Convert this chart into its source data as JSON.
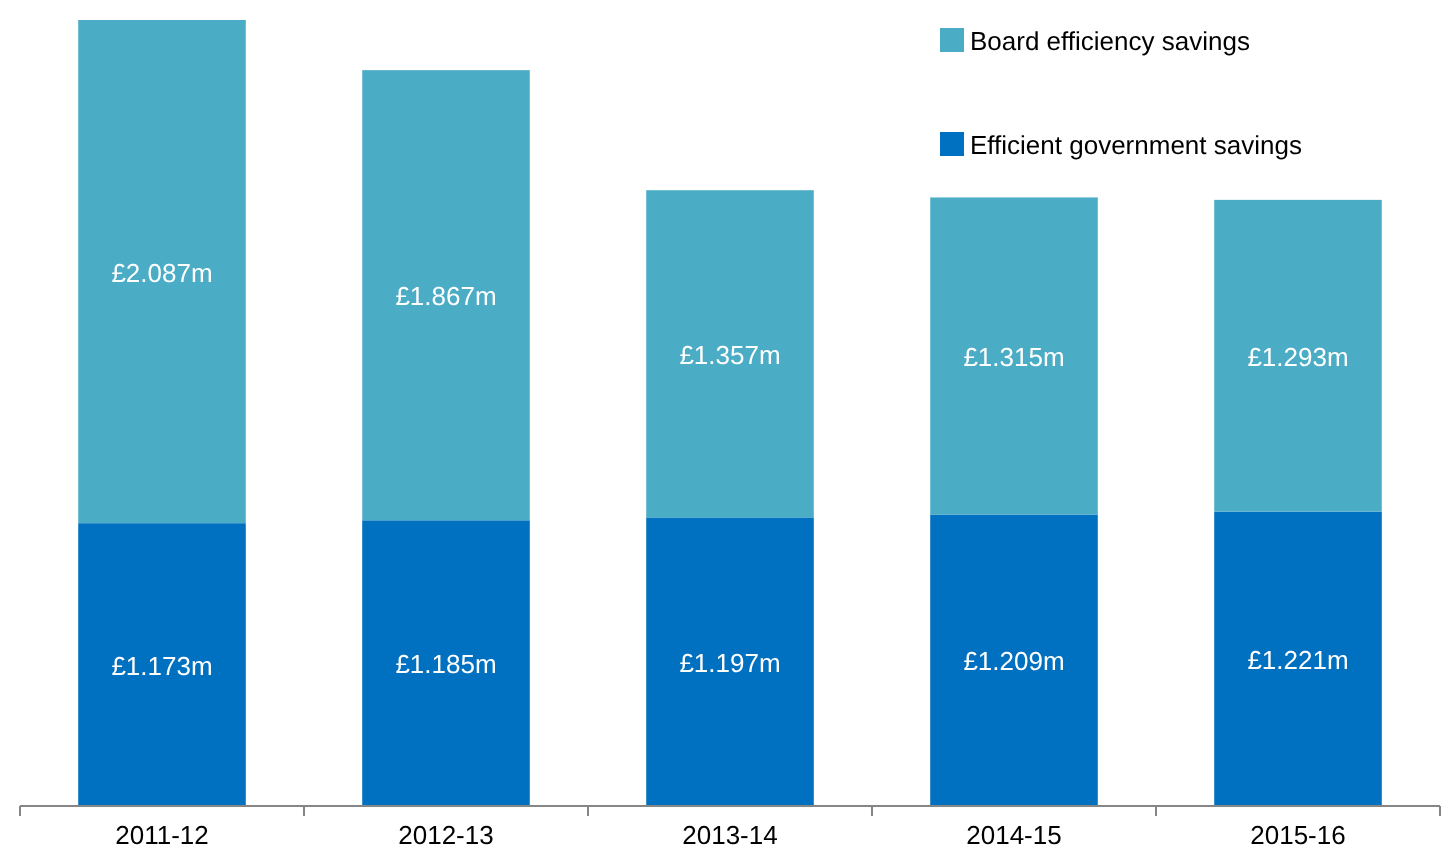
{
  "chart_data": {
    "type": "bar",
    "stacked": true,
    "categories": [
      "2011-12",
      "2012-13",
      "2013-14",
      "2014-15",
      "2015-16"
    ],
    "series": [
      {
        "name": "Efficient government savings",
        "color": "#0070c0",
        "values": [
          1.173,
          1.185,
          1.197,
          1.209,
          1.221
        ],
        "value_labels": [
          "£1.173m",
          "£1.185m",
          "£1.197m",
          "£1.209m",
          "£1.221m"
        ]
      },
      {
        "name": "Board efficiency savings",
        "color": "#4bacc6",
        "values": [
          2.087,
          1.867,
          1.357,
          1.315,
          1.293
        ],
        "value_labels": [
          "£2.087m",
          "£1.867m",
          "£1.357m",
          "£1.315m",
          "£1.293m"
        ]
      }
    ],
    "legend": "top right"
  }
}
